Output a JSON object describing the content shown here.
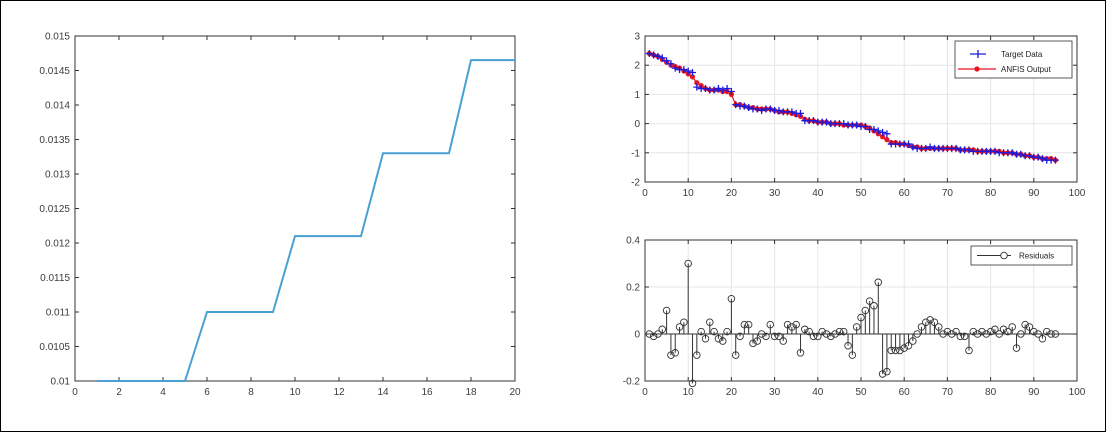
{
  "chart_data": [
    {
      "type": "line",
      "xlim": [
        0,
        20
      ],
      "ylim": [
        0.01,
        0.015
      ],
      "xticks": [
        0,
        2,
        4,
        6,
        8,
        10,
        12,
        14,
        16,
        18,
        20
      ],
      "yticks": [
        "0.01",
        "0.0105",
        "0.011",
        "0.0115",
        "0.012",
        "0.0125",
        "0.013",
        "0.0135",
        "0.014",
        "0.0145",
        "0.015"
      ],
      "grid": false,
      "color": "#4a9fd5",
      "series": [
        {
          "x": [
            1,
            5,
            6,
            9,
            10,
            13,
            14,
            17,
            18,
            20
          ],
          "y": [
            0.01,
            0.01,
            0.011,
            0.011,
            0.0121,
            0.0121,
            0.0133,
            0.0133,
            0.01465,
            0.01465
          ]
        }
      ]
    },
    {
      "type": "line",
      "xlim": [
        0,
        100
      ],
      "ylim": [
        -2,
        3
      ],
      "xticks": [
        0,
        10,
        20,
        30,
        40,
        50,
        60,
        70,
        80,
        90,
        100
      ],
      "yticks": [
        "-2",
        "-1",
        "0",
        "1",
        "2",
        "3"
      ],
      "grid": true,
      "legend_position": "top-right",
      "series": [
        {
          "name": "Target Data",
          "marker": "plus",
          "color": "#1a1adc",
          "y": [
            2.4,
            2.35,
            2.3,
            2.25,
            2.15,
            2.05,
            1.9,
            1.85,
            1.85,
            1.8,
            1.75,
            1.25,
            1.2,
            1.2,
            1.15,
            1.15,
            1.2,
            1.15,
            1.2,
            1.1,
            0.65,
            0.6,
            0.6,
            0.55,
            0.5,
            0.5,
            0.45,
            0.5,
            0.5,
            0.45,
            0.45,
            0.4,
            0.4,
            0.4,
            0.35,
            0.35,
            0.1,
            0.1,
            0.1,
            0.05,
            0.05,
            0.05,
            0.0,
            0.0,
            0.0,
            0.0,
            -0.05,
            -0.05,
            -0.05,
            -0.1,
            -0.1,
            -0.2,
            -0.2,
            -0.25,
            -0.3,
            -0.35,
            -0.7,
            -0.7,
            -0.7,
            -0.7,
            -0.7,
            -0.8,
            -0.85,
            -0.85,
            -0.85,
            -0.8,
            -0.85,
            -0.85,
            -0.85,
            -0.85,
            -0.85,
            -0.85,
            -0.9,
            -0.9,
            -0.9,
            -0.95,
            -0.95,
            -0.95,
            -0.95,
            -0.95,
            -0.95,
            -1.0,
            -1.0,
            -1.0,
            -1.0,
            -1.05,
            -1.05,
            -1.1,
            -1.1,
            -1.15,
            -1.15,
            -1.2,
            -1.25,
            -1.25,
            -1.25
          ]
        },
        {
          "name": "ANFIS Output",
          "marker": "circle-line",
          "color": "#e8141e",
          "y": [
            2.4,
            2.35,
            2.3,
            2.2,
            2.1,
            2.0,
            1.95,
            1.9,
            1.8,
            1.7,
            1.6,
            1.4,
            1.3,
            1.2,
            1.15,
            1.15,
            1.15,
            1.1,
            1.1,
            1.0,
            0.65,
            0.65,
            0.6,
            0.55,
            0.55,
            0.5,
            0.5,
            0.5,
            0.5,
            0.45,
            0.4,
            0.4,
            0.4,
            0.35,
            0.3,
            0.25,
            0.15,
            0.1,
            0.1,
            0.05,
            0.05,
            0.05,
            0.0,
            0.0,
            0.0,
            -0.05,
            -0.05,
            -0.05,
            -0.05,
            -0.05,
            -0.1,
            -0.15,
            -0.25,
            -0.35,
            -0.45,
            -0.55,
            -0.65,
            -0.65,
            -0.7,
            -0.7,
            -0.75,
            -0.8,
            -0.8,
            -0.85,
            -0.85,
            -0.85,
            -0.85,
            -0.85,
            -0.85,
            -0.85,
            -0.85,
            -0.85,
            -0.9,
            -0.9,
            -0.9,
            -0.9,
            -0.95,
            -0.95,
            -0.95,
            -0.95,
            -0.95,
            -0.95,
            -1.0,
            -1.0,
            -1.0,
            -1.05,
            -1.05,
            -1.1,
            -1.1,
            -1.15,
            -1.15,
            -1.2,
            -1.2,
            -1.2,
            -1.25
          ]
        }
      ]
    },
    {
      "type": "stem",
      "xlim": [
        0,
        100
      ],
      "ylim": [
        -0.2,
        0.4
      ],
      "xticks": [
        0,
        10,
        20,
        30,
        40,
        50,
        60,
        70,
        80,
        90,
        100
      ],
      "yticks": [
        "-0.2",
        "0",
        "0.2",
        "0.4"
      ],
      "grid": true,
      "legend_position": "top-right",
      "series": [
        {
          "name": "Residuals",
          "color": "#333333",
          "y": [
            0.0,
            -0.01,
            0.0,
            0.02,
            0.1,
            -0.09,
            -0.08,
            0.03,
            0.05,
            0.3,
            -0.21,
            -0.09,
            0.01,
            -0.02,
            0.05,
            0.01,
            -0.02,
            -0.03,
            0.01,
            0.15,
            -0.09,
            -0.01,
            0.04,
            0.04,
            -0.04,
            -0.03,
            0.0,
            -0.01,
            0.04,
            -0.01,
            -0.01,
            -0.03,
            0.04,
            0.03,
            0.04,
            -0.08,
            0.02,
            0.01,
            -0.01,
            -0.01,
            0.01,
            0.0,
            -0.01,
            0.0,
            0.01,
            0.01,
            -0.05,
            -0.09,
            0.03,
            0.07,
            0.1,
            0.14,
            0.12,
            0.22,
            -0.17,
            -0.16,
            -0.07,
            -0.07,
            -0.07,
            -0.06,
            -0.05,
            -0.03,
            0.0,
            0.03,
            0.05,
            0.06,
            0.05,
            0.03,
            0.0,
            0.01,
            0.0,
            0.01,
            -0.01,
            -0.01,
            -0.07,
            0.01,
            0.0,
            0.01,
            0.0,
            0.01,
            0.02,
            0.0,
            0.02,
            0.01,
            0.03,
            -0.06,
            0.0,
            0.04,
            0.03,
            0.01,
            0.0,
            -0.02,
            0.01,
            0.0,
            0.0
          ]
        }
      ]
    }
  ]
}
